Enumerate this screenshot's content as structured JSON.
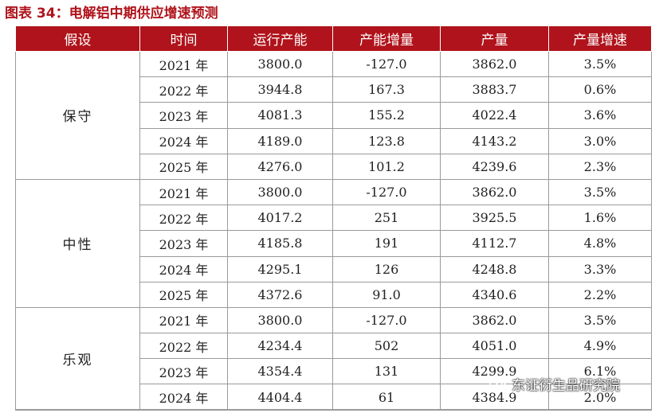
{
  "title": "图表 34：电解铝中期供应增速预测",
  "table": {
    "headers": [
      "假设",
      "时间",
      "运行产能",
      "产能增量",
      "产量",
      "产量增速"
    ],
    "groups": [
      {
        "scenario": "保守",
        "rows": [
          [
            "2021 年",
            "3800.0",
            "-127.0",
            "3862.0",
            "3.5%"
          ],
          [
            "2022 年",
            "3944.8",
            "167.3",
            "3883.7",
            "0.6%"
          ],
          [
            "2023 年",
            "4081.3",
            "155.2",
            "4022.4",
            "3.6%"
          ],
          [
            "2024 年",
            "4189.0",
            "123.8",
            "4143.2",
            "3.0%"
          ],
          [
            "2025 年",
            "4276.0",
            "101.2",
            "4239.6",
            "2.3%"
          ]
        ]
      },
      {
        "scenario": "中性",
        "rows": [
          [
            "2021 年",
            "3800.0",
            "-127.0",
            "3862.0",
            "3.5%"
          ],
          [
            "2022 年",
            "4017.2",
            "251",
            "3925.5",
            "1.6%"
          ],
          [
            "2023 年",
            "4185.8",
            "191",
            "4112.7",
            "4.8%"
          ],
          [
            "2024 年",
            "4295.1",
            "126",
            "4248.8",
            "3.3%"
          ],
          [
            "2025 年",
            "4372.6",
            "91.0",
            "4340.6",
            "2.2%"
          ]
        ]
      },
      {
        "scenario": "乐观",
        "rows": [
          [
            "2021 年",
            "3800.0",
            "-127.0",
            "3862.0",
            "3.5%"
          ],
          [
            "2022 年",
            "4234.4",
            "502",
            "4051.0",
            "4.9%"
          ],
          [
            "2023 年",
            "4354.4",
            "131",
            "4299.9",
            "6.1%"
          ],
          [
            "2024 年",
            "4404.4",
            "61",
            "4384.9",
            "2.0%"
          ]
        ]
      }
    ]
  },
  "watermark": {
    "icon": "wechat-icon",
    "text": "东证衍生品研究院"
  },
  "colors": {
    "accent": "#b0131b",
    "header_text": "#ffffff",
    "grid": "#9a9a9a"
  }
}
